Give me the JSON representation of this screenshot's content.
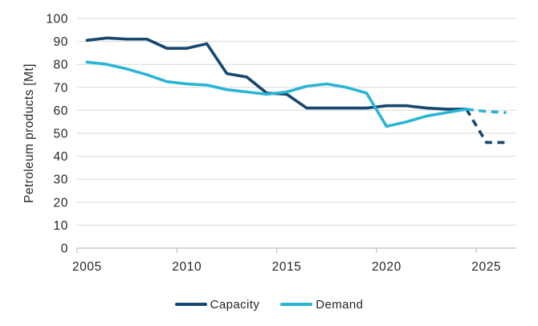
{
  "chart_data": {
    "type": "line",
    "title": "",
    "xlabel": "",
    "ylabel": "Petroleum products [Mt]",
    "x": [
      2005,
      2006,
      2007,
      2008,
      2009,
      2010,
      2011,
      2012,
      2013,
      2014,
      2015,
      2016,
      2017,
      2018,
      2019,
      2020,
      2021,
      2022,
      2023,
      2024,
      2025,
      2026
    ],
    "xticks": [
      2005,
      2010,
      2015,
      2020,
      2025
    ],
    "ylim": [
      0,
      100
    ],
    "ytick_step": 10,
    "grid": "horizontal",
    "legend_position": "bottom",
    "forecast_start_year": 2024,
    "forecast_style": "dashed",
    "series": [
      {
        "name": "Capacity",
        "color": "#16476E",
        "values": [
          90.5,
          91.5,
          91,
          91,
          87,
          87,
          89,
          76,
          74.5,
          67.5,
          67,
          61,
          61,
          61,
          61,
          62,
          62,
          61,
          60.5,
          60.5,
          46,
          46
        ]
      },
      {
        "name": "Demand",
        "color": "#2AB5D5",
        "values": [
          81,
          80,
          78,
          75.5,
          72.5,
          71.5,
          71,
          69,
          68,
          67,
          68,
          70.5,
          71.5,
          70,
          67.5,
          53,
          55,
          57.5,
          59,
          60.5,
          59.5,
          59
        ]
      }
    ],
    "colors": {
      "grid": "#D9D9D9",
      "axis": "#BFBFBF",
      "text": "#262626"
    }
  }
}
